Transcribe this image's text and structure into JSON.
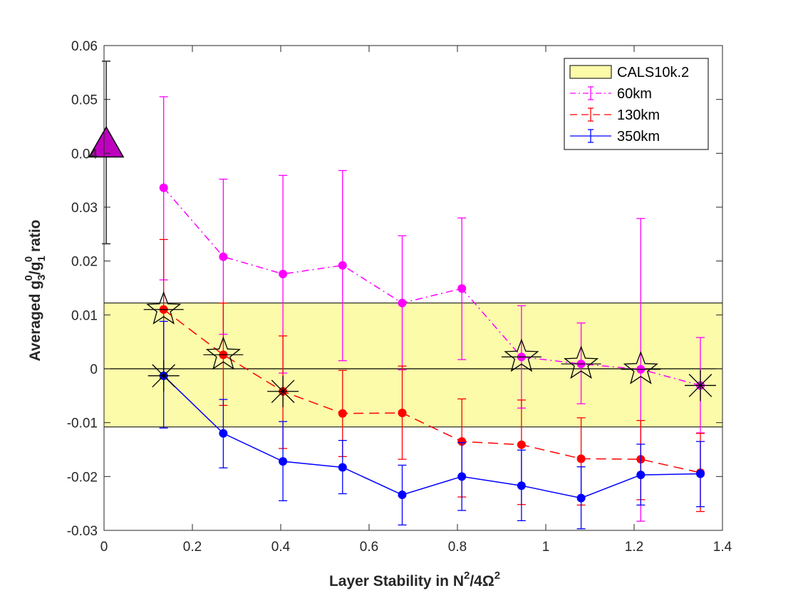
{
  "chart_data": {
    "type": "line",
    "xlabel": {
      "main": "Layer Stability in N",
      "sup1": "2",
      "mid": "/4Ω",
      "sup2": "2"
    },
    "ylabel": {
      "pre": "Averaged g",
      "sub1": "3",
      "sup1": "0",
      "slash": "/g",
      "sub2": "1",
      "sup2": "0",
      "post": " ratio"
    },
    "xlim": [
      0,
      1.4
    ],
    "ylim": [
      -0.03,
      0.06
    ],
    "xticks": [
      0,
      0.2,
      0.4,
      0.6,
      0.8,
      1,
      1.2,
      1.4
    ],
    "xtick_labels": [
      "0",
      "0.2",
      "0.4",
      "0.6",
      "0.8",
      "1",
      "1.2",
      "1.4"
    ],
    "yticks": [
      -0.03,
      -0.02,
      -0.01,
      0,
      0.01,
      0.02,
      0.03,
      0.04,
      0.05,
      0.06
    ],
    "ytick_labels": [
      "-0.03",
      "-0.02",
      "-0.01",
      "0",
      "0.01",
      "0.02",
      "0.03",
      "0.04",
      "0.05",
      "0.06"
    ],
    "x": [
      0.135,
      0.27,
      0.405,
      0.54,
      0.675,
      0.81,
      0.945,
      1.08,
      1.215,
      1.35
    ],
    "band": {
      "name": "CALS10k.2",
      "y0": -0.0108,
      "y1": 0.0122,
      "color": "#fbfbaa"
    },
    "zero_line": 0,
    "reference_point": {
      "x": 0.005,
      "y": 0.0413,
      "err_low": 0.0232,
      "err_high": 0.0571,
      "color": "#bf00bf",
      "marker": "triangle"
    },
    "series": [
      {
        "name": "60km",
        "color": "#ff00ff",
        "style": "dashdot",
        "values": [
          0.0336,
          0.0208,
          0.0176,
          0.0192,
          0.0122,
          0.0149,
          0.0022,
          0.0009,
          -0.0001,
          -0.0031
        ],
        "err_low": [
          0.0165,
          0.0064,
          -0.0008,
          0.0015,
          -0.0002,
          0.0017,
          -0.0073,
          -0.0065,
          -0.0283,
          -0.0119
        ],
        "err_high": [
          0.0505,
          0.0352,
          0.0359,
          0.0368,
          0.0247,
          0.028,
          0.0117,
          0.0085,
          0.0279,
          0.0058
        ]
      },
      {
        "name": "130km",
        "color": "#ff0000",
        "style": "dashed",
        "values": [
          0.011,
          0.0026,
          -0.0042,
          -0.0083,
          -0.0082,
          -0.0135,
          -0.0141,
          -0.0167,
          -0.0168,
          -0.0193
        ],
        "err_low": [
          -0.0018,
          -0.0068,
          -0.0148,
          -0.0163,
          -0.0168,
          -0.0238,
          -0.0252,
          -0.0253,
          -0.0243,
          -0.0265
        ],
        "err_high": [
          0.024,
          0.0122,
          0.0061,
          -0.0003,
          0.0005,
          -0.0056,
          -0.0058,
          -0.0091,
          -0.0096,
          -0.012
        ]
      },
      {
        "name": "350km",
        "color": "#0000ff",
        "style": "solid",
        "values": [
          -0.0013,
          -0.012,
          -0.0172,
          -0.0183,
          -0.0234,
          -0.02,
          -0.0217,
          -0.024,
          -0.0197,
          -0.0195
        ],
        "err_low": [
          -0.011,
          -0.0184,
          -0.0245,
          -0.0232,
          -0.029,
          -0.0263,
          -0.0282,
          -0.0297,
          -0.0253,
          -0.0256
        ],
        "err_high": [
          0.0088,
          -0.0057,
          -0.0098,
          -0.0133,
          -0.0179,
          -0.0137,
          -0.0151,
          -0.0182,
          -0.014,
          -0.0135
        ]
      }
    ],
    "star_markers": [
      {
        "x": 0.135,
        "y": 0.011
      },
      {
        "x": 0.27,
        "y": 0.0026
      },
      {
        "x": 0.945,
        "y": 0.0022
      },
      {
        "x": 1.08,
        "y": 0.0009
      },
      {
        "x": 1.215,
        "y": -0.0001
      }
    ],
    "cross_markers": [
      {
        "x": 0.135,
        "y": -0.0013
      },
      {
        "x": 0.405,
        "y": -0.0042
      },
      {
        "x": 1.35,
        "y": -0.0031
      }
    ],
    "legend": {
      "position": "top-right",
      "entries": [
        "CALS10k.2",
        "60km",
        "130km",
        "350km"
      ]
    }
  }
}
